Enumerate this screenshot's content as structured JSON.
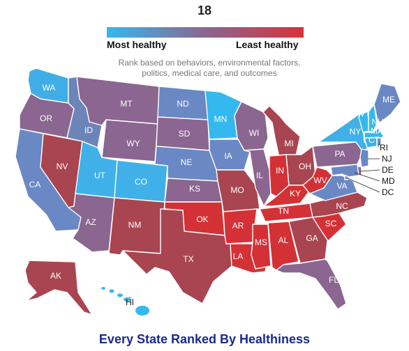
{
  "header": {
    "number": "18"
  },
  "legend": {
    "left_label": "Most healthy",
    "right_label": "Least healthy",
    "color_low": "#35b8ee",
    "color_high": "#d6333a"
  },
  "subtitle": {
    "line1": "Rank based on behaviors, environmental factors,",
    "line2": "politics, medical care, and outcomes"
  },
  "states": {
    "WA": {
      "label": "WA",
      "color": "#40aee6"
    },
    "OR": {
      "label": "OR",
      "color": "#8a6690"
    },
    "CA": {
      "label": "CA",
      "color": "#6a88c4"
    },
    "NV": {
      "label": "NV",
      "color": "#a94550"
    },
    "ID": {
      "label": "ID",
      "color": "#6d84b8"
    },
    "MT": {
      "label": "MT",
      "color": "#8a6690"
    },
    "WY": {
      "label": "WY",
      "color": "#8a6690"
    },
    "UT": {
      "label": "UT",
      "color": "#3fb1e8"
    },
    "CO": {
      "label": "CO",
      "color": "#3fb1e8"
    },
    "AZ": {
      "label": "AZ",
      "color": "#8a6690"
    },
    "NM": {
      "label": "NM",
      "color": "#a94550"
    },
    "ND": {
      "label": "ND",
      "color": "#6a88c4"
    },
    "SD": {
      "label": "SD",
      "color": "#8a6690"
    },
    "NE": {
      "label": "NE",
      "color": "#6a88c4"
    },
    "KS": {
      "label": "KS",
      "color": "#8a6690"
    },
    "OK": {
      "label": "OK",
      "color": "#d43136"
    },
    "TX": {
      "label": "TX",
      "color": "#a94550"
    },
    "MN": {
      "label": "MN",
      "color": "#35b8ee"
    },
    "IA": {
      "label": "IA",
      "color": "#6a88c4"
    },
    "MO": {
      "label": "MO",
      "color": "#a94550"
    },
    "AR": {
      "label": "AR",
      "color": "#d43136"
    },
    "LA": {
      "label": "LA",
      "color": "#d43136"
    },
    "WI": {
      "label": "WI",
      "color": "#8a6690"
    },
    "IL": {
      "label": "IL",
      "color": "#8a6690"
    },
    "MS": {
      "label": "MS",
      "color": "#d43136"
    },
    "MI": {
      "label": "MI",
      "color": "#a94550"
    },
    "IN": {
      "label": "IN",
      "color": "#d43136"
    },
    "OH": {
      "label": "OH",
      "color": "#a94550"
    },
    "KY": {
      "label": "KY",
      "color": "#d43136"
    },
    "TN": {
      "label": "TN",
      "color": "#d43136"
    },
    "AL": {
      "label": "AL",
      "color": "#d43136"
    },
    "GA": {
      "label": "GA",
      "color": "#a94550"
    },
    "FL": {
      "label": "FL",
      "color": "#8a6690"
    },
    "SC": {
      "label": "SC",
      "color": "#d43136"
    },
    "NC": {
      "label": "NC",
      "color": "#a94550"
    },
    "WV": {
      "label": "WV",
      "color": "#d43136"
    },
    "VA": {
      "label": "VA",
      "color": "#6a88c4"
    },
    "PA": {
      "label": "PA",
      "color": "#8a6690"
    },
    "NY": {
      "label": "NY",
      "color": "#3fb1e8"
    },
    "VT": {
      "label": "VT",
      "color": "#35b8ee"
    },
    "NH": {
      "label": "NH",
      "color": "#35b8ee"
    },
    "ME": {
      "label": "ME",
      "color": "#6a88c4"
    },
    "MA": {
      "label": "MA",
      "color": "#35b8ee"
    },
    "CT": {
      "label": "CT",
      "color": "#3fb1e8"
    },
    "NJ": {
      "label": "NJ",
      "color": "#6a88c4"
    },
    "DE": {
      "label": "DE",
      "color": "#8a6690"
    },
    "MD": {
      "label": "MD",
      "color": "#6a88c4"
    },
    "RI": {
      "label": "RI",
      "color": "#6a88c4"
    },
    "DC": {
      "label": "DC",
      "color": "#6a88c4"
    },
    "AK": {
      "label": "AK",
      "color": "#a94550"
    },
    "HI": {
      "label": "HI",
      "color": "#35b8ee"
    }
  },
  "title": "Every State Ranked By Healthiness"
}
